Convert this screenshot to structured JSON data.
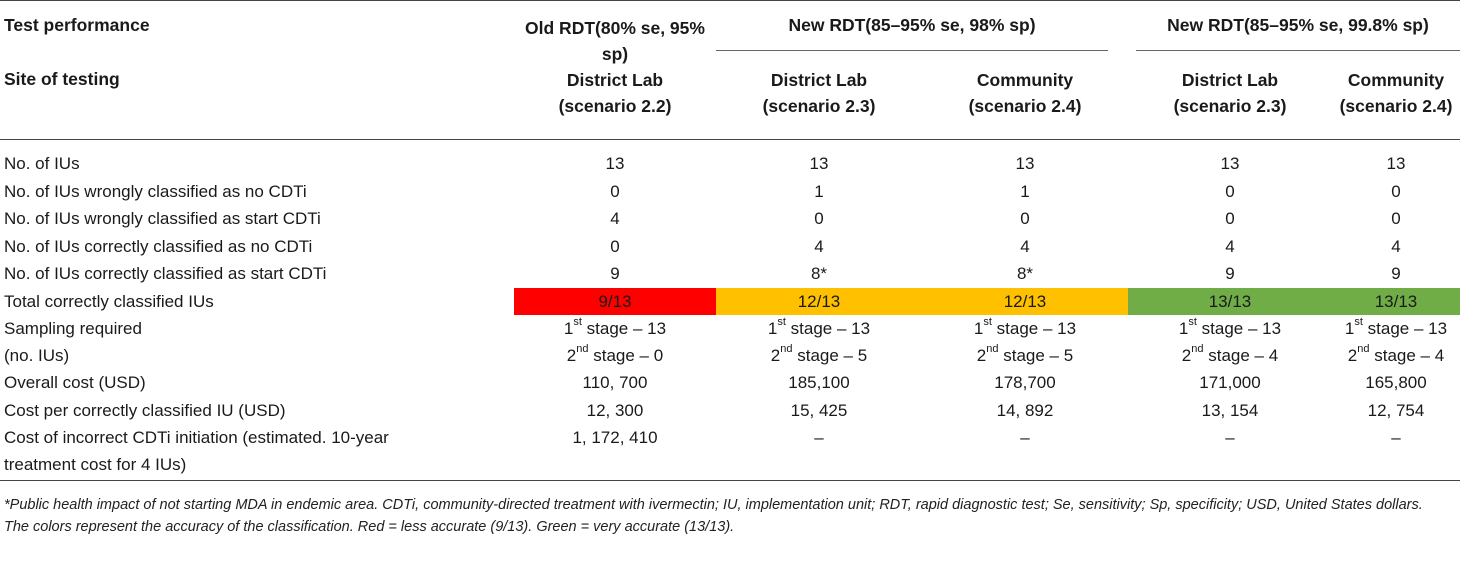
{
  "header": {
    "row1_label": "Test performance",
    "row2_label": "Site of testing",
    "old_group": "Old RDT(80% se, 95% sp)",
    "new_group_a": "New RDT(85–95% se, 98% sp)",
    "new_group_b": "New RDT(85–95% se, 99.8% sp)",
    "site1_name": "District Lab",
    "site1_scenario": "(scenario 2.2)",
    "site2_name": "District Lab",
    "site2_scenario": "(scenario 2.3)",
    "site3_name": "Community",
    "site3_scenario": "(scenario 2.4)",
    "site4_name": "District Lab",
    "site4_scenario": "(scenario 2.3)",
    "site5_name": "Community",
    "site5_scenario": "(scenario 2.4)"
  },
  "rows": [
    {
      "label": "No. of IUs",
      "values": [
        "13",
        "13",
        "13",
        "13",
        "13"
      ]
    },
    {
      "label": "No. of IUs wrongly classified as no CDTi",
      "values": [
        "0",
        "1",
        "1",
        "0",
        "0"
      ]
    },
    {
      "label": "No. of IUs wrongly classified as start CDTi",
      "values": [
        "4",
        "0",
        "0",
        "0",
        "0"
      ]
    },
    {
      "label": "No. of IUs correctly classified as no CDTi",
      "values": [
        "0",
        "4",
        "4",
        "4",
        "4"
      ]
    },
    {
      "label": "No. of IUs correctly classified as start CDTi",
      "values": [
        "9",
        "8*",
        "8*",
        "9",
        "9"
      ]
    },
    {
      "label": "Total correctly classified IUs",
      "values": [
        "9/13",
        "12/13",
        "12/13",
        "13/13",
        "13/13"
      ]
    }
  ],
  "sampling": {
    "label_line1": "Sampling required",
    "label_line2": "(no. IUs)",
    "stage1_num": [
      "1",
      "1",
      "1",
      "1",
      "1"
    ],
    "stage1_sup": [
      "st",
      "st",
      "st",
      "st",
      "st"
    ],
    "stage1_rest": [
      " stage – 13",
      " stage – 13",
      " stage – 13",
      " stage – 13",
      " stage – 13"
    ],
    "stage2_num": [
      "2",
      "2",
      "2",
      "2",
      "2"
    ],
    "stage2_sup": [
      "nd",
      "nd",
      "nd",
      "nd",
      "nd"
    ],
    "stage2_rest": [
      " stage – 0",
      " stage – 5",
      " stage – 5",
      " stage – 4",
      " stage – 4"
    ]
  },
  "rows_lower": [
    {
      "label": "Overall cost (USD)",
      "values": [
        "110, 700",
        "185,100",
        "178,700",
        "171,000",
        "165,800"
      ]
    },
    {
      "label": "Cost per correctly classified IU (USD)",
      "values": [
        "12, 300",
        "15, 425",
        "14, 892",
        "13, 154",
        "12, 754"
      ]
    }
  ],
  "incorrect_cost": {
    "label_line1": "Cost of incorrect CDTi initiation (estimated. 10-year",
    "label_line2": "treatment cost for 4 IUs)",
    "values": [
      "1, 172, 410",
      "–",
      "–",
      "–",
      "–"
    ]
  },
  "accuracy_colors": {
    "less_accurate": "#ff0000",
    "intermediate": "#ffc000",
    "very_accurate": "#70ad47"
  },
  "notes": {
    "footnote": "*Public health impact of not starting MDA in endemic area. CDTi, community-directed treatment with ivermectin; IU, implementation unit; RDT, rapid diagnostic test; Se, sensitivity; Sp, specificity; USD, United States dollars.",
    "colors_note": "The colors represent the accuracy of the classification. Red = less accurate (9/13). Green = very accurate (13/13)."
  }
}
